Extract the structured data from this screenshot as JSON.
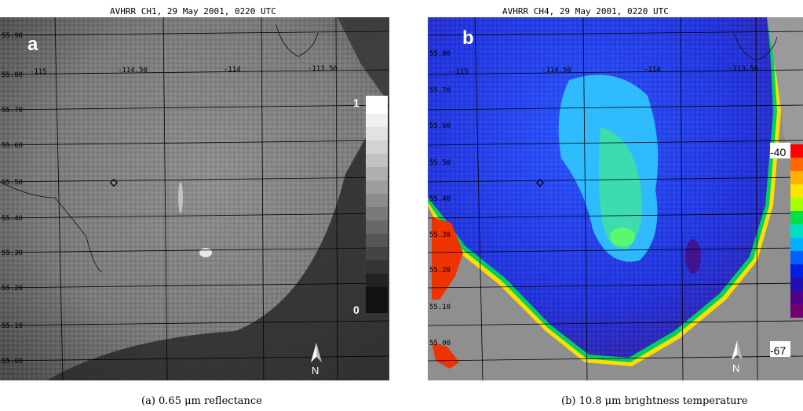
{
  "panels": [
    {
      "title": "AVHRR CH1, 29 May 2001, 0220 UTC",
      "letter": "a",
      "caption": "(a) 0.65 μm reflectance",
      "lat_labels": [
        "55.90",
        "55.80",
        "55.70",
        "55.60",
        "55.50",
        "55.40",
        "55.30",
        "55.20",
        "55.10",
        "55.00"
      ],
      "lon_labels": [
        "-115",
        "-114.50",
        "-114",
        "-113.50"
      ],
      "colorbar_labels": {
        "max": "1",
        "min": "0"
      },
      "north_label": "N"
    },
    {
      "title": "AVHRR CH4, 29 May 2001, 0220 UTC",
      "letter": "b",
      "caption": "(b) 10.8 μm brightness temperature",
      "lat_labels": [
        "55.80",
        "55.70",
        "55.60",
        "55.50",
        "55.40",
        "55.30",
        "55.20",
        "55.10",
        "55.00"
      ],
      "lon_labels": [
        "-115",
        "-114.50",
        "-114",
        "-113.50"
      ],
      "colorbar_labels": {
        "max": "-40",
        "min": "-67"
      },
      "north_label": "N"
    }
  ],
  "colors": {
    "colorbar_b": [
      "#ff0000",
      "#ff6a00",
      "#ffb000",
      "#ffe600",
      "#a8ff00",
      "#00e04a",
      "#00e0c0",
      "#00b0ff",
      "#0060ff",
      "#0020e0",
      "#2010b0",
      "#50008a",
      "#700070"
    ]
  }
}
